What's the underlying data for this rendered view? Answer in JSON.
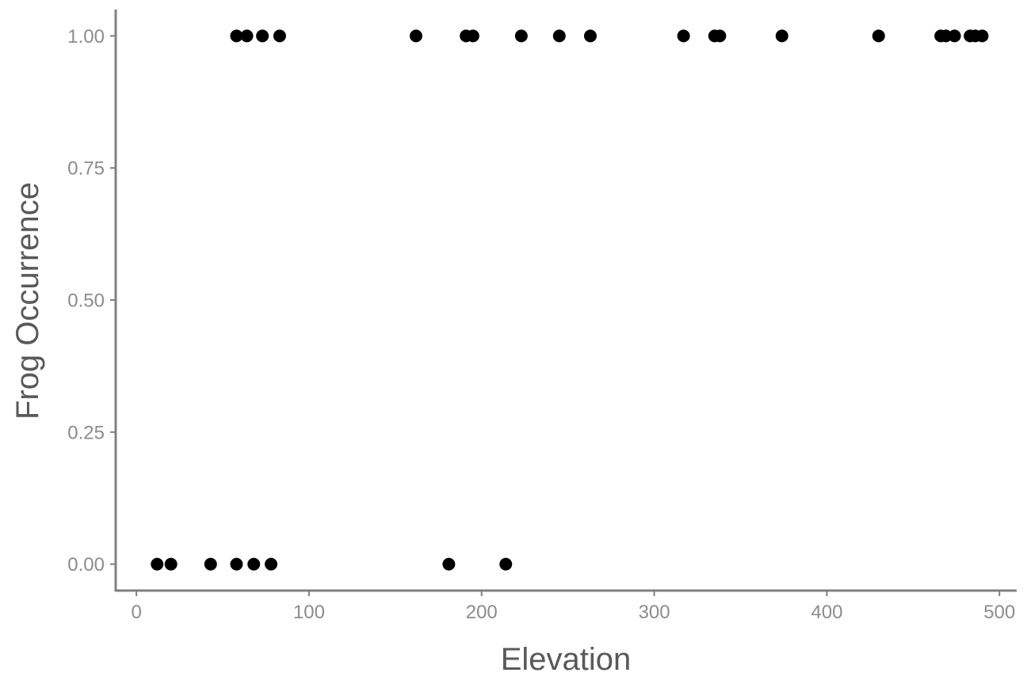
{
  "chart_data": {
    "type": "scatter",
    "title": "",
    "xlabel": "Elevation",
    "ylabel": "Frog Occurrence",
    "xlim": [
      -12,
      510
    ],
    "ylim": [
      -0.05,
      1.05
    ],
    "x_ticks": [
      0,
      100,
      200,
      300,
      400,
      500
    ],
    "x_tick_labels": [
      "0",
      "100",
      "200",
      "300",
      "400",
      "500"
    ],
    "y_ticks": [
      0,
      0.25,
      0.5,
      0.75,
      1
    ],
    "y_tick_labels": [
      "0.00",
      "0.25",
      "0.50",
      "0.75",
      "1.00"
    ],
    "grid": false,
    "legend": "none",
    "point_color": "#000000",
    "points": [
      {
        "x": 12,
        "y": 0
      },
      {
        "x": 20,
        "y": 0
      },
      {
        "x": 43,
        "y": 0
      },
      {
        "x": 58,
        "y": 0
      },
      {
        "x": 68,
        "y": 0
      },
      {
        "x": 78,
        "y": 0
      },
      {
        "x": 181,
        "y": 0
      },
      {
        "x": 214,
        "y": 0
      },
      {
        "x": 58,
        "y": 1
      },
      {
        "x": 64,
        "y": 1
      },
      {
        "x": 73,
        "y": 1
      },
      {
        "x": 83,
        "y": 1
      },
      {
        "x": 162,
        "y": 1
      },
      {
        "x": 191,
        "y": 1
      },
      {
        "x": 195,
        "y": 1
      },
      {
        "x": 223,
        "y": 1
      },
      {
        "x": 245,
        "y": 1
      },
      {
        "x": 263,
        "y": 1
      },
      {
        "x": 317,
        "y": 1
      },
      {
        "x": 335,
        "y": 1
      },
      {
        "x": 338,
        "y": 1
      },
      {
        "x": 374,
        "y": 1
      },
      {
        "x": 430,
        "y": 1
      },
      {
        "x": 466,
        "y": 1
      },
      {
        "x": 469,
        "y": 1
      },
      {
        "x": 474,
        "y": 1
      },
      {
        "x": 483,
        "y": 1
      },
      {
        "x": 486,
        "y": 1
      },
      {
        "x": 490,
        "y": 1
      }
    ]
  }
}
